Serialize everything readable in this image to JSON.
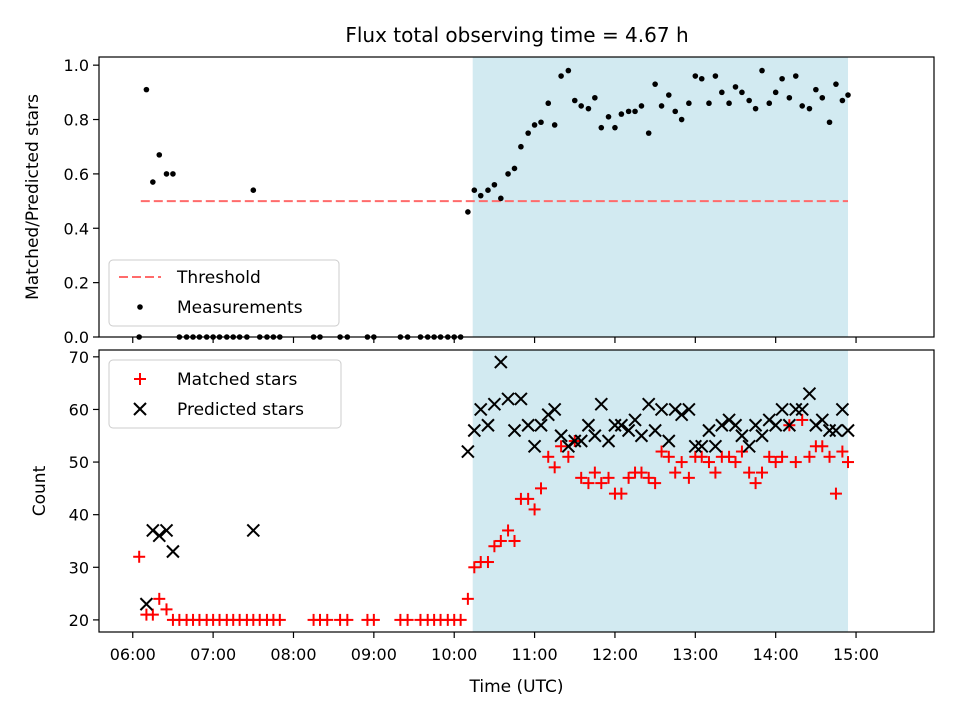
{
  "figure": {
    "title": "Flux total observing time = 4.67 h"
  },
  "chart_data": [
    {
      "type": "scatter",
      "panel": "top",
      "ylabel": "Matched/Predicted stars",
      "xlabel": "",
      "xlim": [
        5.58,
        15.97
      ],
      "ylim": [
        0.0,
        1.03
      ],
      "yticks": [
        0.0,
        0.2,
        0.4,
        0.6,
        0.8,
        1.0
      ],
      "ytick_labels": [
        "0.0",
        "0.2",
        "0.4",
        "0.6",
        "0.8",
        "1.0"
      ],
      "xticks": [
        6,
        7,
        8,
        9,
        10,
        11,
        12,
        13,
        14,
        15
      ],
      "xtick_labels": [],
      "shaded_region": {
        "x_start": 10.23,
        "x_end": 14.9,
        "color": "#add8e6"
      },
      "threshold": {
        "name": "Threshold",
        "value": 0.5,
        "x_start": 6.1,
        "x_end": 14.9,
        "color": "#ff6b6b"
      },
      "legend": {
        "placement": "lower-left",
        "entries": [
          "Threshold",
          "Measurements"
        ]
      },
      "series": [
        {
          "name": "Measurements",
          "color": "#000000",
          "marker": "dot",
          "x": [
            6.08,
            6.17,
            6.25,
            6.33,
            6.42,
            6.5,
            7.5,
            10.17,
            10.25,
            10.33,
            10.42,
            10.5,
            10.58,
            10.67,
            10.75,
            10.83,
            10.92,
            11.0,
            11.08,
            11.17,
            11.25,
            11.33,
            11.42,
            11.5,
            11.58,
            11.67,
            11.75,
            11.83,
            11.92,
            12.0,
            12.08,
            12.17,
            12.25,
            12.33,
            12.42,
            12.5,
            12.58,
            12.67,
            12.75,
            12.83,
            12.92,
            13.0,
            13.08,
            13.17,
            13.25,
            13.33,
            13.42,
            13.5,
            13.58,
            13.67,
            13.75,
            13.83,
            13.92,
            14.0,
            14.08,
            14.17,
            14.25,
            14.33,
            14.42,
            14.5,
            14.58,
            14.67,
            14.75,
            14.83,
            14.9,
            6.58,
            6.67,
            6.75,
            6.83,
            6.92,
            7.0,
            7.08,
            7.17,
            7.25,
            7.33,
            7.42,
            7.58,
            7.67,
            7.75,
            7.83,
            8.25,
            8.33,
            8.58,
            8.67,
            8.92,
            9.0,
            9.33,
            9.42,
            9.58,
            9.67,
            9.75,
            9.83,
            9.92,
            10.0,
            10.08
          ],
          "y": [
            0.0,
            0.91,
            0.57,
            0.67,
            0.6,
            0.6,
            0.54,
            0.46,
            0.54,
            0.52,
            0.54,
            0.56,
            0.51,
            0.6,
            0.62,
            0.7,
            0.75,
            0.78,
            0.79,
            0.86,
            0.78,
            0.96,
            0.98,
            0.87,
            0.85,
            0.84,
            0.88,
            0.77,
            0.81,
            0.77,
            0.82,
            0.83,
            0.83,
            0.85,
            0.75,
            0.93,
            0.85,
            0.89,
            0.83,
            0.8,
            0.86,
            0.96,
            0.95,
            0.86,
            0.96,
            0.9,
            0.86,
            0.92,
            0.9,
            0.87,
            0.84,
            0.98,
            0.86,
            0.9,
            0.95,
            0.88,
            0.96,
            0.85,
            0.84,
            0.91,
            0.88,
            0.79,
            0.93,
            0.87,
            0.89,
            0.0,
            0.0,
            0.0,
            0.0,
            0.0,
            0.0,
            0.0,
            0.0,
            0.0,
            0.0,
            0.0,
            0.0,
            0.0,
            0.0,
            0.0,
            0.0,
            0.0,
            0.0,
            0.0,
            0.0,
            0.0,
            0.0,
            0.0,
            0.0,
            0.0,
            0.0,
            0.0,
            0.0,
            0.0,
            0.0
          ]
        }
      ],
      "grid": false
    },
    {
      "type": "scatter",
      "panel": "bottom",
      "ylabel": "Count",
      "xlabel": "Time (UTC)",
      "xlim": [
        5.58,
        15.97
      ],
      "ylim": [
        17.7,
        71.3
      ],
      "yticks": [
        20,
        30,
        40,
        50,
        60,
        70
      ],
      "ytick_labels": [
        "20",
        "30",
        "40",
        "50",
        "60",
        "70"
      ],
      "xticks": [
        6,
        7,
        8,
        9,
        10,
        11,
        12,
        13,
        14,
        15
      ],
      "xtick_labels": [
        "06:00",
        "07:00",
        "08:00",
        "09:00",
        "10:00",
        "11:00",
        "12:00",
        "13:00",
        "14:00",
        "15:00"
      ],
      "shaded_region": {
        "x_start": 10.23,
        "x_end": 14.9,
        "color": "#add8e6"
      },
      "legend": {
        "placement": "top-left",
        "entries": [
          "Matched stars",
          "Predicted stars"
        ]
      },
      "series": [
        {
          "name": "Matched stars",
          "color": "#ff0000",
          "marker": "plus",
          "x": [
            6.08,
            6.17,
            6.25,
            6.33,
            6.42,
            6.5,
            6.58,
            6.67,
            6.75,
            6.83,
            6.92,
            7.0,
            7.08,
            7.17,
            7.25,
            7.33,
            7.42,
            7.5,
            7.58,
            7.67,
            7.75,
            7.83,
            8.25,
            8.33,
            8.42,
            8.58,
            8.67,
            8.92,
            9.0,
            9.33,
            9.42,
            9.58,
            9.67,
            9.75,
            9.83,
            9.92,
            10.0,
            10.08,
            10.17,
            10.25,
            10.33,
            10.42,
            10.5,
            10.58,
            10.67,
            10.75,
            10.83,
            10.92,
            11.0,
            11.08,
            11.17,
            11.25,
            11.33,
            11.42,
            11.5,
            11.58,
            11.67,
            11.75,
            11.83,
            11.92,
            12.0,
            12.08,
            12.17,
            12.25,
            12.33,
            12.42,
            12.5,
            12.58,
            12.67,
            12.75,
            12.83,
            12.92,
            13.0,
            13.08,
            13.17,
            13.25,
            13.33,
            13.42,
            13.5,
            13.58,
            13.67,
            13.75,
            13.83,
            13.92,
            14.0,
            14.08,
            14.17,
            14.25,
            14.33,
            14.42,
            14.5,
            14.58,
            14.67,
            14.75,
            14.83,
            14.9
          ],
          "y": [
            32,
            21,
            21,
            24,
            22,
            20,
            20,
            20,
            20,
            20,
            20,
            20,
            20,
            20,
            20,
            20,
            20,
            20,
            20,
            20,
            20,
            20,
            20,
            20,
            20,
            20,
            20,
            20,
            20,
            20,
            20,
            20,
            20,
            20,
            20,
            20,
            20,
            20,
            24,
            30,
            31,
            31,
            34,
            35,
            37,
            35,
            43,
            43,
            41,
            45,
            51,
            49,
            53,
            51,
            54,
            47,
            46,
            48,
            46,
            47,
            44,
            44,
            47,
            48,
            48,
            47,
            46,
            52,
            51,
            48,
            50,
            47,
            51,
            51,
            50,
            48,
            51,
            51,
            50,
            52,
            48,
            46,
            48,
            51,
            50,
            51,
            57,
            50,
            58,
            51,
            53,
            53,
            51,
            44,
            52,
            50
          ]
        },
        {
          "name": "Predicted stars",
          "color": "#000000",
          "marker": "x",
          "x": [
            6.17,
            6.25,
            6.33,
            6.42,
            6.5,
            7.5,
            10.17,
            10.25,
            10.33,
            10.42,
            10.5,
            10.58,
            10.67,
            10.75,
            10.83,
            10.92,
            11.0,
            11.08,
            11.17,
            11.25,
            11.33,
            11.42,
            11.5,
            11.58,
            11.67,
            11.75,
            11.83,
            11.92,
            12.0,
            12.08,
            12.17,
            12.25,
            12.33,
            12.42,
            12.5,
            12.58,
            12.67,
            12.75,
            12.83,
            12.92,
            13.0,
            13.08,
            13.17,
            13.25,
            13.33,
            13.42,
            13.5,
            13.58,
            13.67,
            13.75,
            13.83,
            13.92,
            14.0,
            14.08,
            14.17,
            14.25,
            14.33,
            14.42,
            14.5,
            14.58,
            14.67,
            14.75,
            14.83,
            14.9
          ],
          "y": [
            23,
            37,
            36,
            37,
            33,
            37,
            52,
            56,
            60,
            57,
            61,
            69,
            62,
            56,
            62,
            57,
            53,
            57,
            59,
            60,
            55,
            53,
            54,
            54,
            57,
            55,
            61,
            54,
            57,
            57,
            56,
            58,
            55,
            61,
            56,
            60,
            54,
            60,
            59,
            60,
            53,
            53,
            56,
            53,
            57,
            58,
            57,
            55,
            53,
            57,
            55,
            58,
            57,
            60,
            57,
            60,
            60,
            63,
            57,
            58,
            56,
            56,
            60,
            56
          ]
        }
      ],
      "grid": false
    }
  ]
}
